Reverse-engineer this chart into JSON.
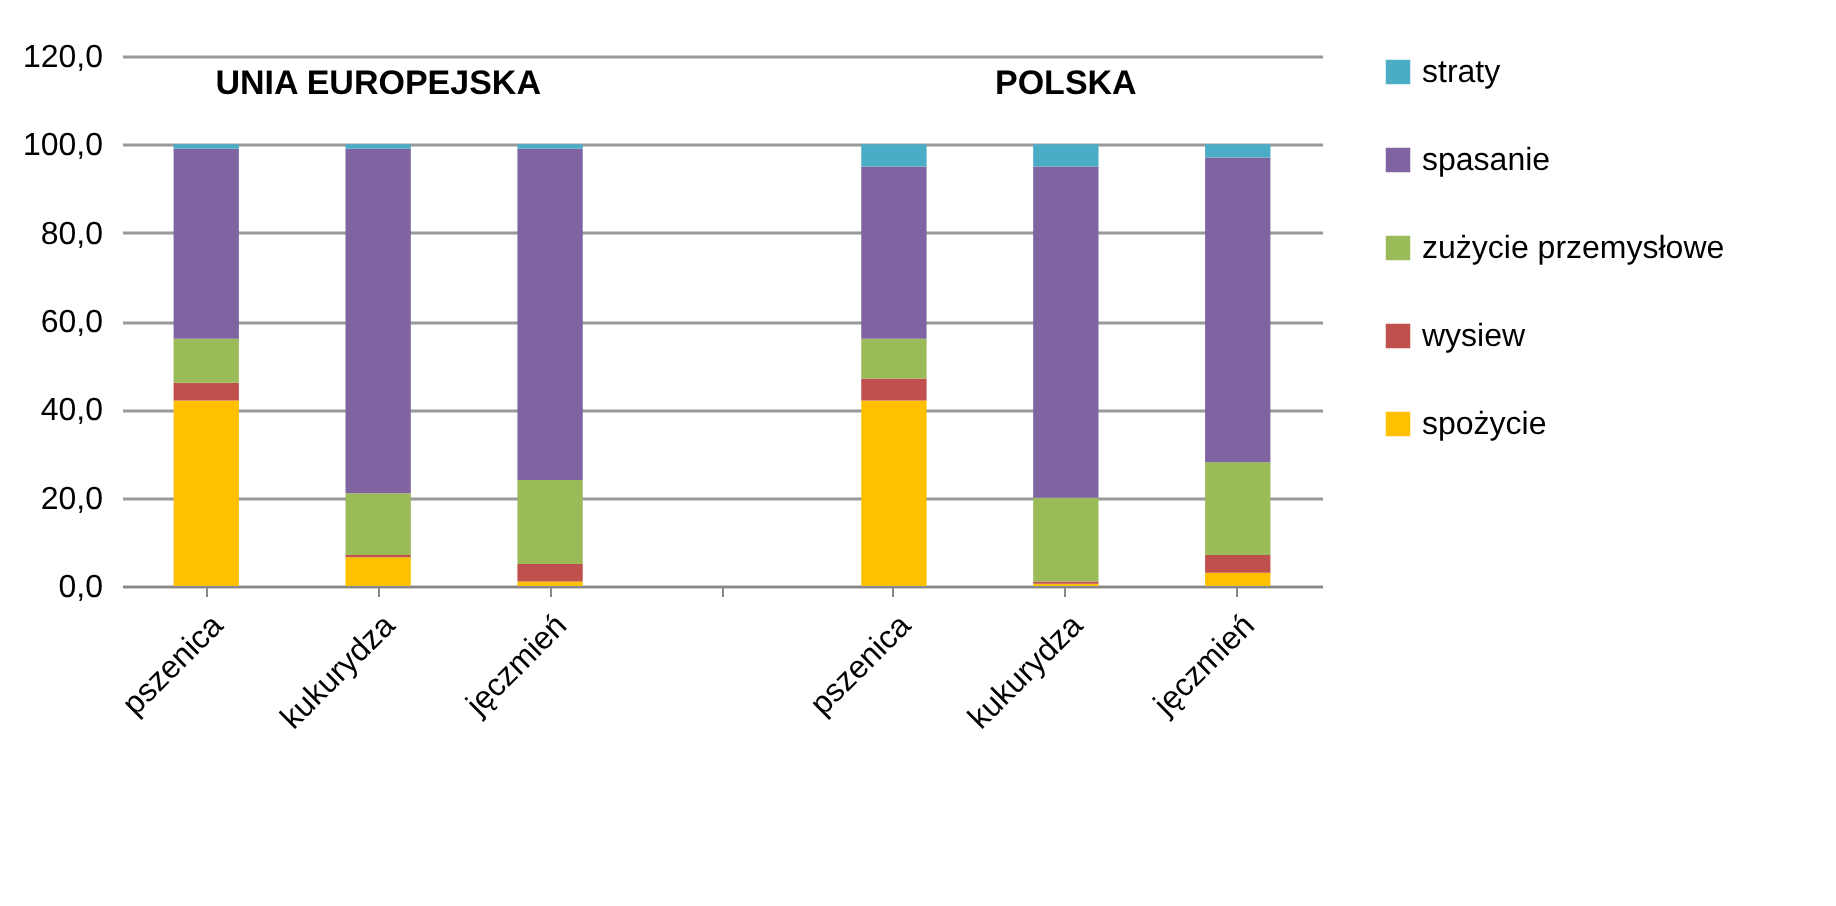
{
  "chart_data": {
    "type": "bar",
    "stacked": true,
    "categories": [
      "pszenica",
      "kukurydza",
      "jęczmień",
      null,
      "pszenica",
      "kukurydza",
      "jęczmień"
    ],
    "series": [
      {
        "name": "spożycie",
        "color": "#ffc000",
        "values": [
          42,
          6.5,
          1,
          null,
          42,
          0.5,
          3
        ]
      },
      {
        "name": "wysiew",
        "color": "#c0504d",
        "values": [
          4,
          0.5,
          4,
          null,
          5,
          0.5,
          4
        ]
      },
      {
        "name": "zużycie przemysłowe",
        "color": "#9bbb59",
        "values": [
          10,
          14,
          19,
          null,
          9,
          19,
          21
        ]
      },
      {
        "name": "spasanie",
        "color": "#8064a2",
        "values": [
          43,
          78,
          75,
          null,
          39,
          75,
          69
        ]
      },
      {
        "name": "straty",
        "color": "#4bacc6",
        "values": [
          1,
          1,
          1,
          null,
          5,
          5,
          3
        ]
      }
    ],
    "ylim": [
      0,
      120
    ],
    "yticks": [
      {
        "value": 0,
        "label": "0,0"
      },
      {
        "value": 20,
        "label": "20,0"
      },
      {
        "value": 40,
        "label": "40,0"
      },
      {
        "value": 60,
        "label": "60,0"
      },
      {
        "value": 80,
        "label": "80,0"
      },
      {
        "value": 100,
        "label": "100,0"
      },
      {
        "value": 120,
        "label": "120,0"
      }
    ],
    "grid": true,
    "legend": "right",
    "annotations": [
      "UNIA EUROPEJSKA",
      "POLSKA"
    ]
  }
}
